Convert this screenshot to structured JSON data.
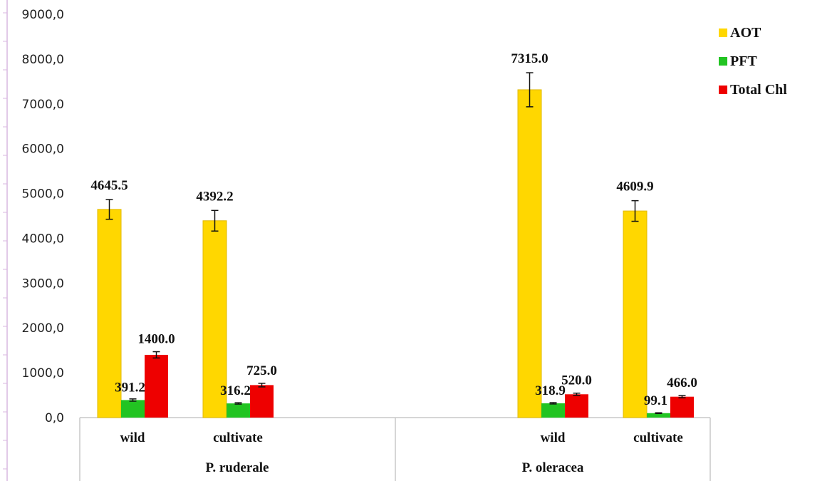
{
  "chart_data": {
    "type": "bar",
    "ylim": [
      0,
      9000
    ],
    "yticks": [
      "0,0",
      "1000,0",
      "2000,0",
      "3000,0",
      "4000,0",
      "5000,0",
      "6000,0",
      "7000,0",
      "8000,0",
      "9000,0"
    ],
    "groups": [
      {
        "name": "P. ruderale",
        "categories": [
          "wild",
          "cultivate"
        ]
      },
      {
        "name": "P. oleracea",
        "categories": [
          "wild",
          "cultivate"
        ]
      }
    ],
    "series": [
      {
        "name": "AOT",
        "color": "#FFD700",
        "values": [
          4645.5,
          4392.2,
          7315.0,
          4609.9
        ],
        "labels": [
          "4645.5",
          "4392.2",
          "7315.0",
          "4609.9"
        ],
        "errors": [
          220,
          230,
          380,
          230
        ]
      },
      {
        "name": "PFT",
        "color": "#22C422",
        "values": [
          391.2,
          316.2,
          318.9,
          99.1
        ],
        "labels": [
          "391.2",
          "316.2",
          "318.9",
          "99.1"
        ],
        "errors": [
          25,
          15,
          15,
          8
        ]
      },
      {
        "name": "Total Chl",
        "color": "#EE0000",
        "values": [
          1400.0,
          725.0,
          520.0,
          466.0
        ],
        "labels": [
          "1400.0",
          "725.0",
          "520.0",
          "466.0"
        ],
        "errors": [
          70,
          40,
          25,
          25
        ]
      }
    ],
    "legend_position": "top-right",
    "grid": false
  }
}
